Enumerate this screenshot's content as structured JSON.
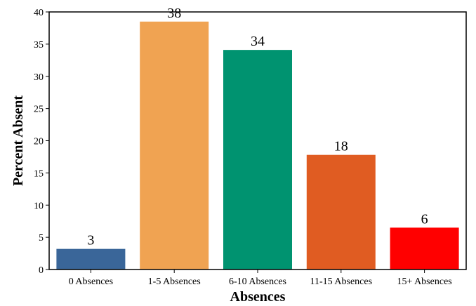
{
  "chart_data": {
    "type": "bar",
    "title": "",
    "xlabel": "Absences",
    "ylabel": "Percent Absent",
    "categories": [
      "0 Absences",
      "1-5 Absences",
      "6-10 Absences",
      "11-15 Absences",
      "15+ Absences"
    ],
    "values": [
      3.2,
      38.5,
      34.1,
      17.8,
      6.5
    ],
    "data_labels": [
      "3",
      "38",
      "34",
      "18",
      "6"
    ],
    "colors": [
      "#3a6699",
      "#f0a352",
      "#009370",
      "#e05c22",
      "#ff0000"
    ],
    "ylim": [
      0,
      40
    ],
    "yticks": [
      0,
      5,
      10,
      15,
      20,
      25,
      30,
      35,
      40
    ],
    "grid": false,
    "legend": "none"
  }
}
